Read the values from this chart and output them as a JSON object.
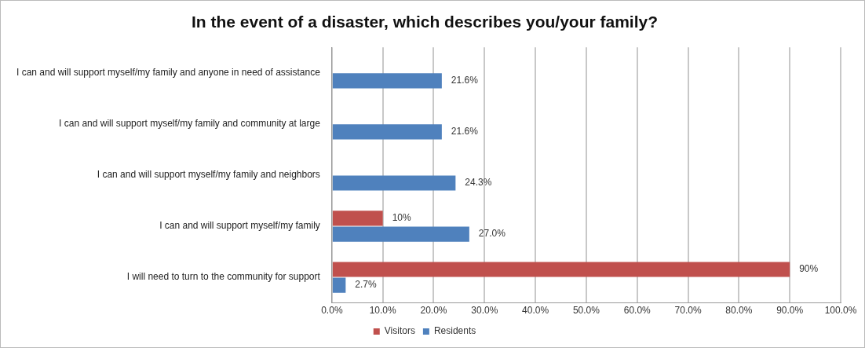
{
  "chart_data": {
    "type": "bar",
    "orientation": "horizontal",
    "title": "In the event of a disaster, which describes you/your family?",
    "categories": [
      "I can and will support myself/my family and anyone in need of assistance",
      "I can and will support myself/my family and community at large",
      "I can and will support myself/my family and neighbors",
      "I can and will support myself/my family",
      "I will need to turn to the community for support"
    ],
    "series": [
      {
        "name": "Visitors",
        "color": "#c0504d",
        "values": [
          null,
          null,
          null,
          10,
          90
        ],
        "value_labels": [
          null,
          null,
          null,
          "10%",
          "90%"
        ]
      },
      {
        "name": "Residents",
        "color": "#4f81bd",
        "values": [
          21.6,
          21.6,
          24.3,
          27.0,
          2.7
        ],
        "value_labels": [
          "21.6%",
          "21.6%",
          "24.3%",
          "27.0%",
          "2.7%"
        ]
      }
    ],
    "xlim": [
      0,
      100
    ],
    "xticks": [
      {
        "value": 0,
        "label": "0.0%"
      },
      {
        "value": 10,
        "label": "10.0%"
      },
      {
        "value": 20,
        "label": "20.0%"
      },
      {
        "value": 30,
        "label": "30.0%"
      },
      {
        "value": 40,
        "label": "40.0%"
      },
      {
        "value": 50,
        "label": "50.0%"
      },
      {
        "value": 60,
        "label": "60.0%"
      },
      {
        "value": 70,
        "label": "70.0%"
      },
      {
        "value": 80,
        "label": "80.0%"
      },
      {
        "value": 90,
        "label": "90.0%"
      },
      {
        "value": 100,
        "label": "100.0%"
      }
    ],
    "grid": "x",
    "legend": "bottom"
  }
}
